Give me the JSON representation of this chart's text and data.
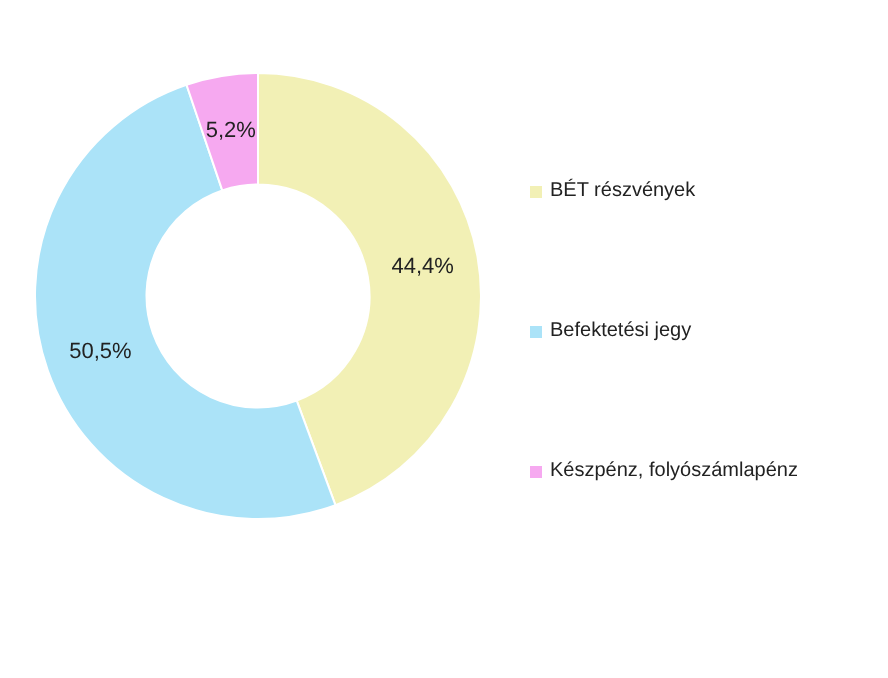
{
  "chart_data": {
    "type": "donut",
    "categories": [
      "BÉT részvények",
      "Befektetési jegy",
      "Készpénz, folyószámlapénz"
    ],
    "values": [
      44.4,
      50.5,
      5.2
    ],
    "colors": [
      "#f2f0b5",
      "#abe3f8",
      "#f6a9f0"
    ],
    "value_labels": [
      "44,4%",
      "50,5%",
      "5,2%"
    ],
    "legend": "right"
  }
}
